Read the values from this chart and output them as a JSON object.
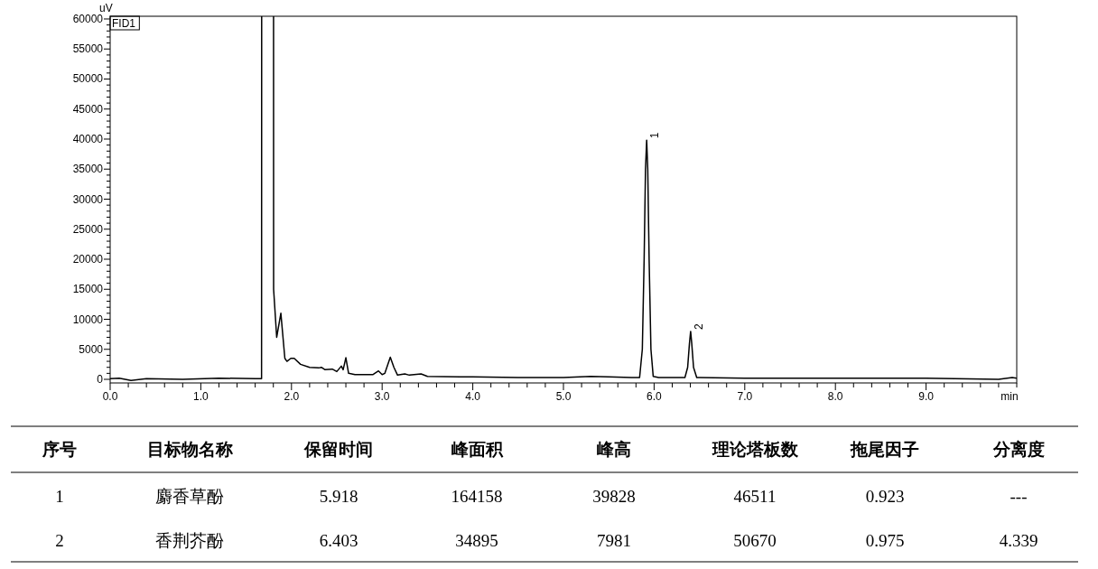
{
  "chart_data": [
    {
      "type": "line",
      "xlabel": "min",
      "ylabel": "uV",
      "xlim": [
        0,
        10
      ],
      "ylim": [
        -600,
        60450
      ],
      "xticks": [
        {
          "value": 0,
          "label": "0.0"
        },
        {
          "value": 0.2,
          "label": null
        },
        {
          "value": 0.4,
          "label": null
        },
        {
          "value": 0.6,
          "label": null
        },
        {
          "value": 0.8,
          "label": null
        },
        {
          "value": 1,
          "label": "1.0"
        },
        {
          "value": 1.2,
          "label": null
        },
        {
          "value": 1.4,
          "label": null
        },
        {
          "value": 1.6,
          "label": null
        },
        {
          "value": 1.8,
          "label": null
        },
        {
          "value": 2,
          "label": "2.0"
        },
        {
          "value": 2.2,
          "label": null
        },
        {
          "value": 2.4,
          "label": null
        },
        {
          "value": 2.6,
          "label": null
        },
        {
          "value": 2.8,
          "label": null
        },
        {
          "value": 3,
          "label": "3.0"
        },
        {
          "value": 3.2,
          "label": null
        },
        {
          "value": 3.4,
          "label": null
        },
        {
          "value": 3.6,
          "label": null
        },
        {
          "value": 3.8,
          "label": null
        },
        {
          "value": 4,
          "label": "4.0"
        },
        {
          "value": 4.2,
          "label": null
        },
        {
          "value": 4.4,
          "label": null
        },
        {
          "value": 4.6,
          "label": null
        },
        {
          "value": 4.8,
          "label": null
        },
        {
          "value": 5,
          "label": "5.0"
        },
        {
          "value": 5.2,
          "label": null
        },
        {
          "value": 5.4,
          "label": null
        },
        {
          "value": 5.6,
          "label": null
        },
        {
          "value": 5.8,
          "label": null
        },
        {
          "value": 6,
          "label": "6.0"
        },
        {
          "value": 6.2,
          "label": null
        },
        {
          "value": 6.4,
          "label": null
        },
        {
          "value": 6.6,
          "label": null
        },
        {
          "value": 6.8,
          "label": null
        },
        {
          "value": 7,
          "label": "7.0"
        },
        {
          "value": 7.2,
          "label": null
        },
        {
          "value": 7.4,
          "label": null
        },
        {
          "value": 7.6,
          "label": null
        },
        {
          "value": 7.8,
          "label": null
        },
        {
          "value": 8,
          "label": "8.0"
        },
        {
          "value": 8.2,
          "label": null
        },
        {
          "value": 8.4,
          "label": null
        },
        {
          "value": 8.6,
          "label": null
        },
        {
          "value": 8.8,
          "label": null
        },
        {
          "value": 9,
          "label": "9.0"
        },
        {
          "value": 9.2,
          "label": null
        },
        {
          "value": 9.4,
          "label": null
        },
        {
          "value": 9.6,
          "label": null
        },
        {
          "value": 9.8,
          "label": null
        },
        {
          "value": 10,
          "label": null
        }
      ],
      "yticks": [
        0,
        {
          "value": 1000,
          "label": null
        },
        {
          "value": 2000,
          "label": null
        },
        {
          "value": 3000,
          "label": null
        },
        {
          "value": 4000,
          "label": null
        },
        5000,
        {
          "value": 6000,
          "label": null
        },
        {
          "value": 7000,
          "label": null
        },
        {
          "value": 8000,
          "label": null
        },
        {
          "value": 9000,
          "label": null
        },
        10000,
        {
          "value": 11000,
          "label": null
        },
        {
          "value": 12000,
          "label": null
        },
        {
          "value": 13000,
          "label": null
        },
        {
          "value": 14000,
          "label": null
        },
        15000,
        {
          "value": 16000,
          "label": null
        },
        {
          "value": 17000,
          "label": null
        },
        {
          "value": 18000,
          "label": null
        },
        {
          "value": 19000,
          "label": null
        },
        20000,
        {
          "value": 21000,
          "label": null
        },
        {
          "value": 22000,
          "label": null
        },
        {
          "value": 23000,
          "label": null
        },
        {
          "value": 24000,
          "label": null
        },
        25000,
        {
          "value": 26000,
          "label": null
        },
        {
          "value": 27000,
          "label": null
        },
        {
          "value": 28000,
          "label": null
        },
        {
          "value": 29000,
          "label": null
        },
        30000,
        {
          "value": 31000,
          "label": null
        },
        {
          "value": 32000,
          "label": null
        },
        {
          "value": 33000,
          "label": null
        },
        {
          "value": 34000,
          "label": null
        },
        35000,
        {
          "value": 36000,
          "label": null
        },
        {
          "value": 37000,
          "label": null
        },
        {
          "value": 38000,
          "label": null
        },
        {
          "value": 39000,
          "label": null
        },
        40000,
        {
          "value": 41000,
          "label": null
        },
        {
          "value": 42000,
          "label": null
        },
        {
          "value": 43000,
          "label": null
        },
        {
          "value": 44000,
          "label": null
        },
        45000,
        {
          "value": 46000,
          "label": null
        },
        {
          "value": 47000,
          "label": null
        },
        {
          "value": 48000,
          "label": null
        },
        {
          "value": 49000,
          "label": null
        },
        50000,
        {
          "value": 51000,
          "label": null
        },
        {
          "value": 52000,
          "label": null
        },
        {
          "value": 53000,
          "label": null
        },
        {
          "value": 54000,
          "label": null
        },
        55000,
        {
          "value": 56000,
          "label": null
        },
        {
          "value": 57000,
          "label": null
        },
        {
          "value": 58000,
          "label": null
        },
        {
          "value": 59000,
          "label": null
        },
        60000
      ],
      "series": [
        {
          "color": "#000000",
          "x": [
            0,
            0.1,
            0.23,
            0.4,
            0.8,
            1.2,
            1.6,
            1.67,
            1.683,
            1.793,
            1.803,
            1.837,
            1.86,
            1.883,
            1.927,
            1.95,
            1.993,
            2.03,
            2.1,
            2.2,
            2.3,
            2.33,
            2.37,
            2.45,
            2.5,
            2.55,
            2.57,
            2.6,
            2.63,
            2.7,
            2.9,
            2.96,
            3.0,
            3.03,
            3.09,
            3.13,
            3.17,
            3.25,
            3.3,
            3.43,
            3.5,
            4.0,
            4.5,
            5.0,
            5.3,
            5.5,
            5.75,
            5.84,
            5.87,
            5.89,
            5.905,
            5.918,
            5.93,
            5.945,
            5.965,
            5.99,
            6.05,
            6.3,
            6.34,
            6.37,
            6.39,
            6.403,
            6.415,
            6.435,
            6.47,
            6.5,
            7.0,
            8.0,
            9.0,
            9.8,
            9.95,
            10
          ],
          "values": [
            100,
            200,
            -200,
            100,
            0,
            200,
            100,
            100,
            null,
            null,
            15000,
            7000,
            9000,
            11000,
            3500,
            3000,
            3500,
            3500,
            2500,
            2000,
            1900,
            2000,
            1600,
            1700,
            1300,
            2200,
            1600,
            3600,
            1000,
            800,
            800,
            1400,
            800,
            1000,
            3700,
            2000,
            700,
            900,
            700,
            900,
            500,
            400,
            300,
            300,
            500,
            400,
            300,
            300,
            5000,
            20000,
            35000,
            39828,
            35000,
            20000,
            5000,
            500,
            300,
            300,
            300,
            2000,
            6000,
            7981,
            6000,
            2000,
            300,
            300,
            200,
            200,
            200,
            0,
            300,
            200
          ]
        }
      ],
      "annotations": [
        "FID1",
        {
          "text": "1",
          "x": 5.918,
          "y": 39828
        },
        {
          "text": "2",
          "x": 6.403,
          "y": 7981
        }
      ]
    },
    {
      "type": "other",
      "annotations": [
        "序号",
        "目标物名称",
        "保留时间",
        "峰面积",
        "峰高",
        "理论塔板数",
        "拖尾因子",
        "分离度",
        "1",
        "麝香草酚",
        "5.918",
        "164158",
        "39828",
        "46511",
        "0.923",
        "---",
        "2",
        "香荆芥酚",
        "6.403",
        "34895",
        "7981",
        "50670",
        "0.975",
        "4.339"
      ]
    }
  ]
}
